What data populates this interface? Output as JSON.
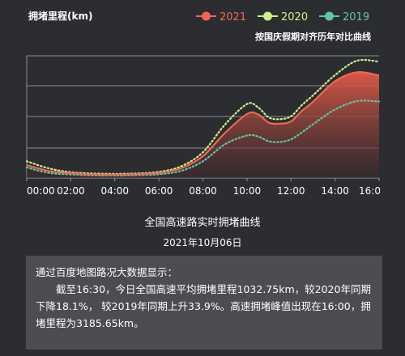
{
  "chart_data": {
    "type": "area",
    "ylabel": "拥堵里程(km)",
    "note": "按国庆假期对齐历年对比曲线",
    "x_ticks": [
      "00:00",
      "02:00",
      "04:00",
      "06:00",
      "08:00",
      "10:00",
      "12:00",
      "14:00",
      "16:0"
    ],
    "x": [
      0,
      1,
      2,
      3,
      4,
      5,
      6,
      7,
      8,
      9,
      10,
      10.5,
      11,
      11.5,
      12,
      12.5,
      13,
      14,
      15,
      16
    ],
    "xlim": [
      0,
      16
    ],
    "ylim": [
      0,
      3800
    ],
    "grid": "horizontal",
    "legend_position": "top-right",
    "series": [
      {
        "name": "2021",
        "color": "#f26552",
        "style": "area-solid",
        "values": [
          400,
          220,
          150,
          110,
          105,
          115,
          160,
          300,
          680,
          1400,
          1990,
          1980,
          1720,
          1690,
          1760,
          2090,
          2370,
          3010,
          3290,
          3190
        ]
      },
      {
        "name": "2020",
        "color": "#cdf281",
        "style": "dotted",
        "values": [
          520,
          300,
          180,
          140,
          130,
          140,
          190,
          360,
          800,
          1660,
          2300,
          2200,
          1880,
          1830,
          1920,
          2270,
          2570,
          3200,
          3650,
          3620
        ]
      },
      {
        "name": "2019",
        "color": "#5dc8a8",
        "style": "dotted",
        "values": [
          330,
          160,
          110,
          80,
          75,
          85,
          115,
          220,
          520,
          1050,
          1320,
          1290,
          1140,
          1120,
          1200,
          1420,
          1670,
          2130,
          2390,
          2380
        ]
      }
    ]
  },
  "caption": "全国高速路实时拥堵曲线",
  "date": "2021年10月06日",
  "info": {
    "title": "通过百度地图路况大数据显示：",
    "body": "截至16:30，今日全国高速平均拥堵里程1032.75km，较2020年同期下降18.1%， 较2019年同期上升33.9%。高速拥堵峰值出现在16:00，拥堵里程为3185.65km。"
  }
}
